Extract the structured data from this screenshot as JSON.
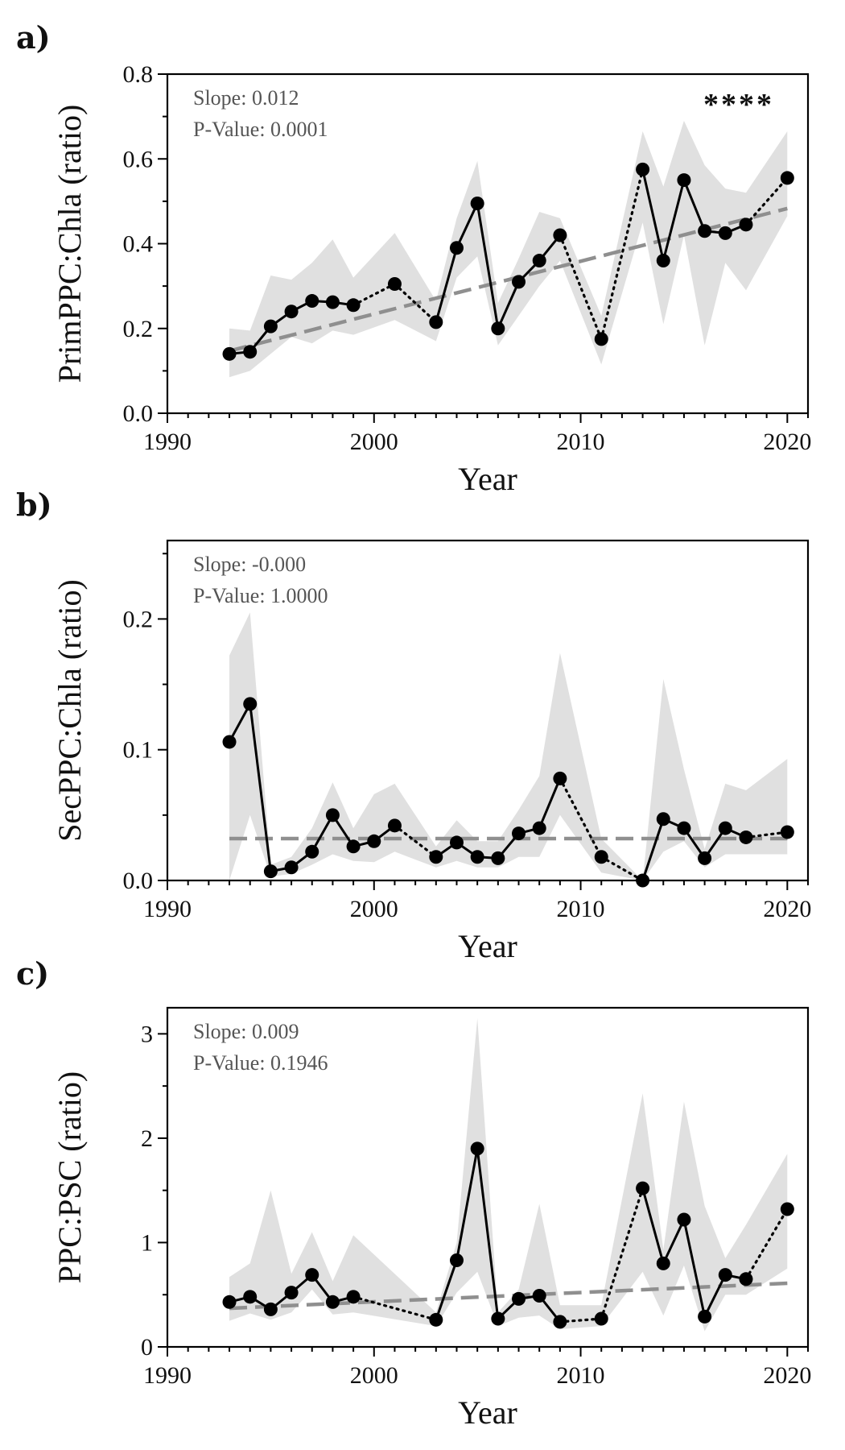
{
  "chart_data": [
    {
      "type": "line",
      "panel_label": "a)",
      "xlabel": "Year",
      "ylabel": "PrimPPC:Chla (ratio)",
      "xlim": [
        1990,
        2021
      ],
      "ylim": [
        0,
        0.8
      ],
      "xticks": [
        1990,
        2000,
        2010,
        2020
      ],
      "yticks": [
        0,
        0.2,
        0.4,
        0.6,
        0.8
      ],
      "ytick_labels": [
        "0.0",
        "0.2",
        "0.4",
        "0.6",
        "0.8"
      ],
      "slope_text": "Slope: 0.012",
      "pvalue_text": "P-Value: 0.0001",
      "significance": "****",
      "trend": {
        "x": [
          1993,
          2020
        ],
        "y": [
          0.147,
          0.483
        ]
      },
      "series": [
        {
          "x": [
            1993,
            1994,
            1995,
            1996,
            1997,
            1998,
            1999,
            2001,
            2003,
            2004,
            2005,
            2006,
            2007,
            2008,
            2009,
            2011,
            2013,
            2014,
            2015,
            2016,
            2017,
            2018,
            2020
          ],
          "y": [
            0.14,
            0.145,
            0.205,
            0.24,
            0.265,
            0.262,
            0.255,
            0.305,
            0.215,
            0.39,
            0.495,
            0.2,
            0.31,
            0.36,
            0.42,
            0.175,
            0.575,
            0.36,
            0.55,
            0.43,
            0.425,
            0.445,
            0.555
          ],
          "lower": [
            0.085,
            0.1,
            0.14,
            0.18,
            0.165,
            0.195,
            0.185,
            0.22,
            0.17,
            0.32,
            0.37,
            0.16,
            0.23,
            0.3,
            0.36,
            0.115,
            0.45,
            0.21,
            0.42,
            0.16,
            0.355,
            0.29,
            0.465
          ],
          "upper": [
            0.2,
            0.195,
            0.325,
            0.315,
            0.355,
            0.41,
            0.32,
            0.425,
            0.265,
            0.46,
            0.595,
            0.26,
            0.365,
            0.475,
            0.46,
            0.23,
            0.665,
            0.535,
            0.69,
            0.585,
            0.53,
            0.52,
            0.665
          ]
        }
      ]
    },
    {
      "type": "line",
      "panel_label": "b)",
      "xlabel": "Year",
      "ylabel": "SecPPC:Chla (ratio)",
      "xlim": [
        1990,
        2021
      ],
      "ylim": [
        0,
        0.26
      ],
      "xticks": [
        1990,
        2000,
        2010,
        2020
      ],
      "yticks": [
        0,
        0.1,
        0.2
      ],
      "ytick_labels": [
        "0.0",
        "0.1",
        "0.2"
      ],
      "slope_text": "Slope: -0.000",
      "pvalue_text": "P-Value: 1.0000",
      "significance": "",
      "trend": {
        "x": [
          1993,
          2020
        ],
        "y": [
          0.032,
          0.032
        ]
      },
      "series": [
        {
          "x": [
            1993,
            1994,
            1995,
            1996,
            1997,
            1998,
            1999,
            2000,
            2001,
            2003,
            2004,
            2005,
            2006,
            2007,
            2008,
            2009,
            2011,
            2013,
            2014,
            2015,
            2016,
            2017,
            2018,
            2020
          ],
          "y": [
            0.106,
            0.135,
            0.007,
            0.01,
            0.022,
            0.05,
            0.026,
            0.03,
            0.042,
            0.018,
            0.029,
            0.018,
            0.017,
            0.036,
            0.04,
            0.078,
            0.018,
            0.0,
            0.047,
            0.04,
            0.017,
            0.04,
            0.033,
            0.037
          ],
          "lower": [
            0.0,
            0.05,
            0.003,
            0.005,
            0.012,
            0.02,
            0.015,
            0.014,
            0.022,
            0.01,
            0.015,
            0.01,
            0.01,
            0.018,
            0.018,
            0.05,
            0.006,
            0.0,
            0.022,
            0.03,
            0.01,
            0.02,
            0.02,
            0.02
          ],
          "upper": [
            0.172,
            0.205,
            0.012,
            0.018,
            0.04,
            0.075,
            0.04,
            0.066,
            0.074,
            0.026,
            0.046,
            0.03,
            0.03,
            0.054,
            0.08,
            0.174,
            0.032,
            0.0,
            0.154,
            0.085,
            0.024,
            0.074,
            0.069,
            0.093
          ]
        }
      ]
    },
    {
      "type": "line",
      "panel_label": "c)",
      "xlabel": "Year",
      "ylabel": "PPC:PSC (ratio)",
      "xlim": [
        1990,
        2021
      ],
      "ylim": [
        0,
        3.25
      ],
      "xticks": [
        1990,
        2000,
        2010,
        2020
      ],
      "yticks": [
        0,
        1,
        2,
        3
      ],
      "ytick_labels": [
        "0",
        "1",
        "2",
        "3"
      ],
      "slope_text": "Slope: 0.009",
      "pvalue_text": "P-Value: 0.1946",
      "significance": "",
      "trend": {
        "x": [
          1993,
          2020
        ],
        "y": [
          0.37,
          0.61
        ]
      },
      "series": [
        {
          "x": [
            1993,
            1994,
            1995,
            1996,
            1997,
            1998,
            1999,
            2003,
            2004,
            2005,
            2006,
            2007,
            2008,
            2009,
            2011,
            2013,
            2014,
            2015,
            2016,
            2017,
            2018,
            2020
          ],
          "y": [
            0.43,
            0.48,
            0.36,
            0.52,
            0.69,
            0.43,
            0.48,
            0.26,
            0.83,
            1.9,
            0.27,
            0.46,
            0.49,
            0.24,
            0.27,
            1.52,
            0.8,
            1.22,
            0.29,
            0.69,
            0.65,
            1.32
          ],
          "lower": [
            0.25,
            0.32,
            0.26,
            0.33,
            0.55,
            0.31,
            0.33,
            0.2,
            0.52,
            0.72,
            0.2,
            0.28,
            0.3,
            0.17,
            0.2,
            0.72,
            0.3,
            0.78,
            0.15,
            0.5,
            0.5,
            0.75
          ],
          "upper": [
            0.67,
            0.8,
            1.5,
            0.7,
            1.1,
            0.63,
            1.07,
            0.33,
            1.0,
            3.15,
            0.33,
            0.55,
            1.37,
            0.4,
            0.4,
            2.43,
            0.93,
            2.35,
            1.35,
            0.85,
            1.17,
            1.85
          ]
        }
      ]
    }
  ]
}
